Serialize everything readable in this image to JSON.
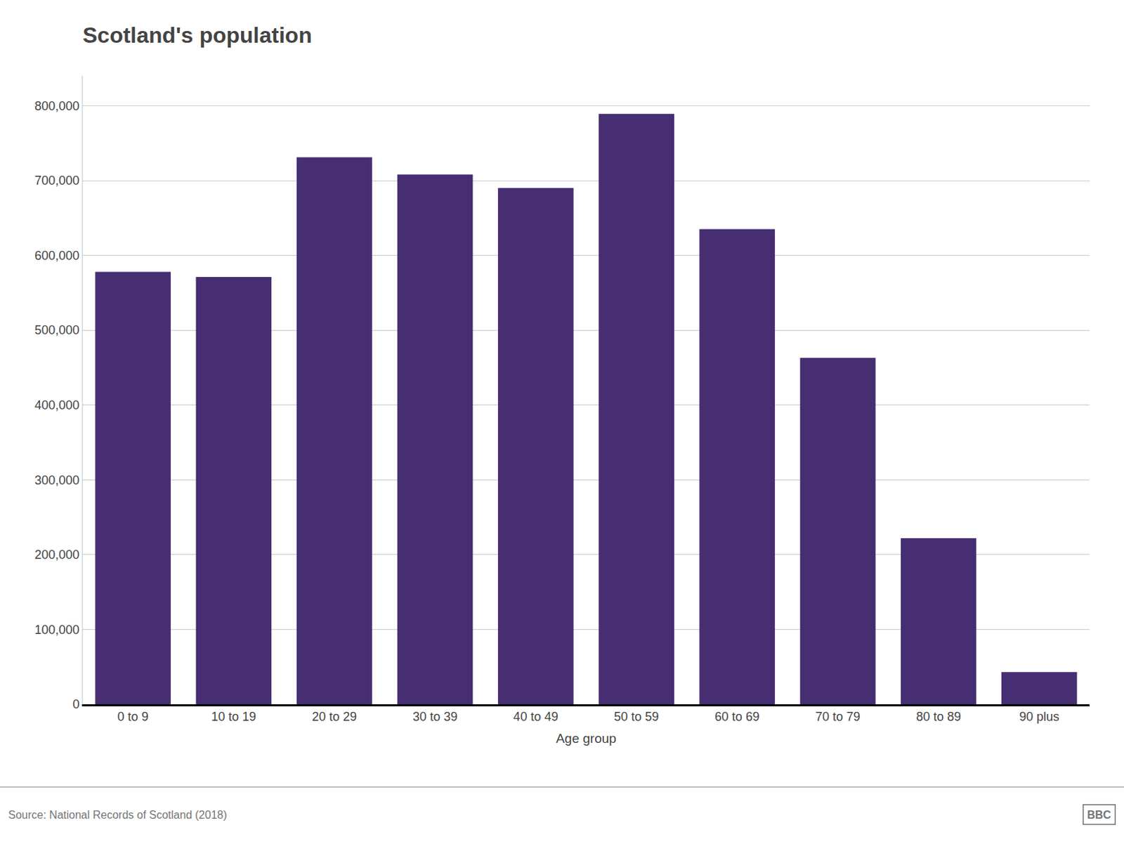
{
  "chart_data": {
    "type": "bar",
    "title": "Scotland's population",
    "categories": [
      "0 to 9",
      "10 to 19",
      "20 to 29",
      "30 to 39",
      "40 to 49",
      "50 to 59",
      "60 to 69",
      "70 to 79",
      "80 to 89",
      "90 plus"
    ],
    "values": [
      578000,
      571000,
      731000,
      708000,
      690000,
      789000,
      635000,
      463000,
      222000,
      43000
    ],
    "color": "#472d72",
    "xlabel": "Age group",
    "ylim": [
      0,
      840000
    ],
    "yticks": [
      0,
      {
        "value": 100000,
        "label": "100,000"
      },
      {
        "value": 200000,
        "label": "200,000"
      },
      {
        "value": 300000,
        "label": "300,000"
      },
      {
        "value": 400000,
        "label": "400,000"
      },
      {
        "value": 500000,
        "label": "500,000"
      },
      {
        "value": 600000,
        "label": "600,000"
      },
      {
        "value": 700000,
        "label": "700,000"
      },
      {
        "value": 800000,
        "label": "800,000"
      }
    ],
    "grid": true,
    "annotations": [
      "Source: National Records of Scotland (2018)",
      "BBC"
    ]
  }
}
